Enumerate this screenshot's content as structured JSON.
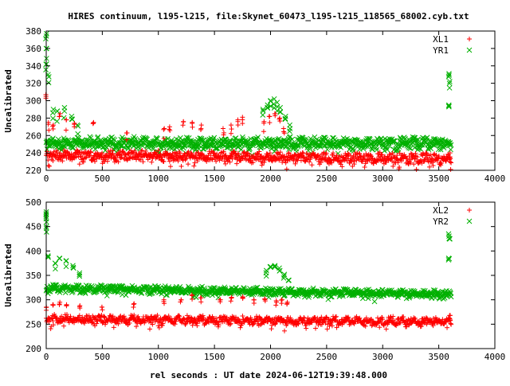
{
  "title": "HIRES continuum, l195-l215, file:Skynet_60473_l195-l215_118565_68002.cyb.txt",
  "xlabel": "rel seconds : UT date 2024-06-12T19:39:48.000",
  "colors": {
    "red": "#ff0000",
    "green": "#00b000",
    "axis": "#000000"
  },
  "chart_data": [
    {
      "type": "scatter",
      "ylabel": "Uncalibrated",
      "xlim": [
        0,
        4000
      ],
      "ylim": [
        220,
        380
      ],
      "x_ticks": [
        0,
        500,
        1000,
        1500,
        2000,
        2500,
        3000,
        3500,
        4000
      ],
      "y_ticks": [
        220,
        240,
        260,
        280,
        300,
        320,
        340,
        360,
        380
      ],
      "legend_position": "top-right",
      "series": [
        {
          "name": "XL1",
          "marker": "plus",
          "color": "#ff0000",
          "baseline_start": 238,
          "baseline_end": 234,
          "spread": 9,
          "scan_spikes": [
            [
              0,
              307
            ],
            [
              20,
              275
            ],
            [
              60,
              272
            ],
            [
              120,
              285
            ],
            [
              180,
              278
            ],
            [
              250,
              274
            ],
            [
              420,
              275
            ],
            [
              720,
              263
            ],
            [
              1050,
              268
            ],
            [
              1100,
              270
            ],
            [
              1220,
              276
            ],
            [
              1300,
              275
            ],
            [
              1380,
              272
            ],
            [
              1580,
              268
            ],
            [
              1650,
              272
            ],
            [
              1710,
              278
            ],
            [
              1750,
              281
            ],
            [
              1940,
              276
            ],
            [
              1990,
              282
            ],
            [
              2040,
              285
            ],
            [
              2080,
              280
            ],
            [
              2120,
              268
            ],
            [
              3600,
              240
            ]
          ]
        },
        {
          "name": "YR1",
          "marker": "cross",
          "color": "#00b000",
          "baseline_start": 252,
          "baseline_end": 252,
          "spread": 10,
          "scan_spikes": [
            [
              0,
              377
            ],
            [
              0,
              360
            ],
            [
              0,
              342
            ],
            [
              20,
              330
            ],
            [
              60,
              290
            ],
            [
              100,
              288
            ],
            [
              160,
              292
            ],
            [
              230,
              282
            ],
            [
              280,
              272
            ],
            [
              1930,
              290
            ],
            [
              1970,
              295
            ],
            [
              2000,
              300
            ],
            [
              2030,
              302
            ],
            [
              2060,
              298
            ],
            [
              2090,
              292
            ],
            [
              2130,
              282
            ],
            [
              2170,
              272
            ],
            [
              3590,
              331
            ],
            [
              3595,
              322
            ],
            [
              3590,
              295
            ]
          ]
        }
      ]
    },
    {
      "type": "scatter",
      "ylabel": "Uncalibrated",
      "xlim": [
        0,
        4000
      ],
      "ylim": [
        200,
        500
      ],
      "x_ticks": [
        0,
        500,
        1000,
        1500,
        2000,
        2500,
        3000,
        3500,
        4000
      ],
      "y_ticks": [
        200,
        250,
        300,
        350,
        400,
        450,
        500
      ],
      "legend_position": "top-right",
      "series": [
        {
          "name": "XL2",
          "marker": "plus",
          "color": "#ff0000",
          "baseline_start": 262,
          "baseline_end": 256,
          "spread": 13,
          "scan_spikes": [
            [
              0,
              285
            ],
            [
              60,
              290
            ],
            [
              120,
              295
            ],
            [
              180,
              290
            ],
            [
              300,
              288
            ],
            [
              500,
              285
            ],
            [
              780,
              292
            ],
            [
              1050,
              300
            ],
            [
              1200,
              300
            ],
            [
              1300,
              310
            ],
            [
              1380,
              304
            ],
            [
              1550,
              300
            ],
            [
              1650,
              305
            ],
            [
              1750,
              306
            ],
            [
              1850,
              300
            ],
            [
              1950,
              302
            ],
            [
              2050,
              298
            ],
            [
              2100,
              300
            ],
            [
              2150,
              295
            ],
            [
              3600,
              268
            ]
          ]
        },
        {
          "name": "YR2",
          "marker": "cross",
          "color": "#00b000",
          "baseline_start": 325,
          "baseline_end": 312,
          "spread": 11,
          "scan_spikes": [
            [
              0,
              480
            ],
            [
              0,
              470
            ],
            [
              0,
              450
            ],
            [
              20,
              390
            ],
            [
              80,
              375
            ],
            [
              120,
              385
            ],
            [
              180,
              380
            ],
            [
              240,
              370
            ],
            [
              300,
              355
            ],
            [
              1960,
              360
            ],
            [
              2000,
              368
            ],
            [
              2040,
              370
            ],
            [
              2080,
              365
            ],
            [
              2120,
              352
            ],
            [
              2160,
              340
            ],
            [
              3590,
              435
            ],
            [
              3595,
              425
            ],
            [
              3590,
              385
            ]
          ]
        }
      ]
    }
  ]
}
